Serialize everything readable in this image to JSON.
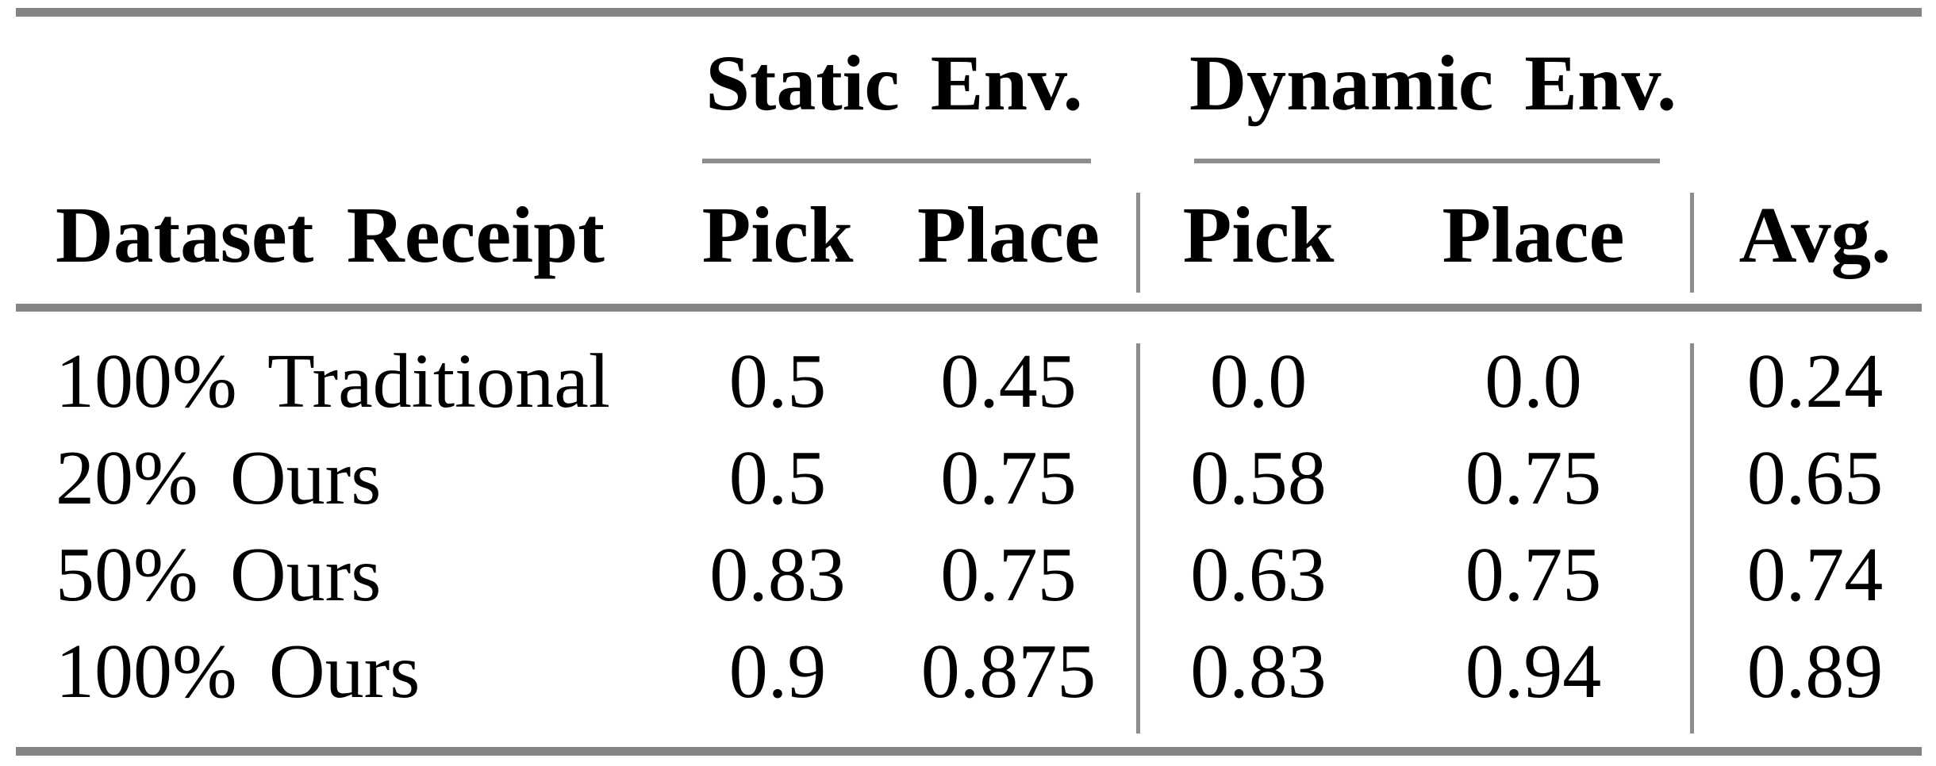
{
  "table": {
    "group_headers": {
      "static": "Static Env.",
      "dynamic": "Dynamic Env."
    },
    "columns": {
      "row_header": "Dataset Receipt",
      "static_pick": "Pick",
      "static_place": "Place",
      "dynamic_pick": "Pick",
      "dynamic_place": "Place",
      "avg": "Avg."
    },
    "rows": [
      {
        "label": "100% Traditional",
        "static_pick": "0.5",
        "static_place": "0.45",
        "dynamic_pick": "0.0",
        "dynamic_place": "0.0",
        "avg": "0.24"
      },
      {
        "label": "20% Ours",
        "static_pick": "0.5",
        "static_place": "0.75",
        "dynamic_pick": "0.58",
        "dynamic_place": "0.75",
        "avg": "0.65"
      },
      {
        "label": "50% Ours",
        "static_pick": "0.83",
        "static_place": "0.75",
        "dynamic_pick": "0.63",
        "dynamic_place": "0.75",
        "avg": "0.74"
      },
      {
        "label": "100% Ours",
        "static_pick": "0.9",
        "static_place": "0.875",
        "dynamic_pick": "0.83",
        "dynamic_place": "0.94",
        "avg": "0.89"
      }
    ],
    "colors": {
      "rule_gray_thick": "#848484",
      "rule_gray_thin": "#8d8d8d",
      "text": "#000000",
      "background": "#ffffff"
    }
  }
}
